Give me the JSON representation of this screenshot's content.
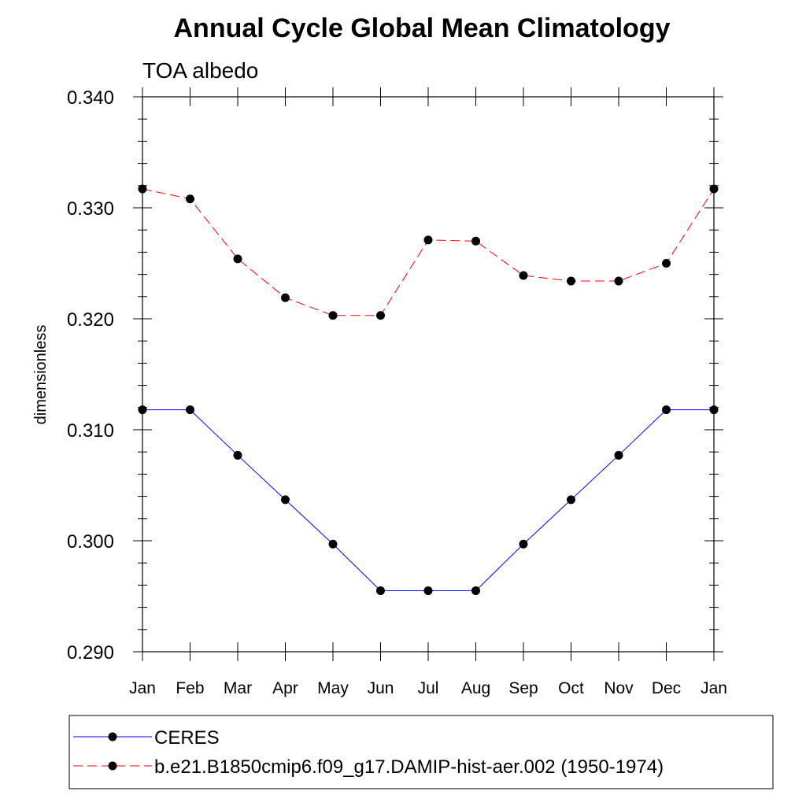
{
  "chart_data": {
    "type": "line",
    "title": "Annual Cycle Global Mean Climatology",
    "subtitle": "TOA albedo",
    "xlabel": "",
    "ylabel": "dimensionless",
    "categories": [
      "Jan",
      "Feb",
      "Mar",
      "Apr",
      "May",
      "Jun",
      "Jul",
      "Aug",
      "Sep",
      "Oct",
      "Nov",
      "Dec",
      "Jan"
    ],
    "ylim": [
      0.29,
      0.34
    ],
    "yticks": [
      "0.290",
      "0.300",
      "0.310",
      "0.320",
      "0.330",
      "0.340"
    ],
    "grid": false,
    "legend_position": "bottom",
    "series": [
      {
        "name": "CERES",
        "color": "#0000ff",
        "dash": "solid",
        "marker": "filled-circle",
        "values": [
          0.3118,
          0.3118,
          0.3077,
          0.3037,
          0.2997,
          0.2955,
          0.2955,
          0.2955,
          0.2997,
          0.3037,
          0.3077,
          0.3118,
          0.3118
        ]
      },
      {
        "name": "b.e21.B1850cmip6.f09_g17.DAMIP-hist-aer.002 (1950-1974)",
        "color": "#ff0000",
        "dash": "dashed",
        "marker": "filled-circle",
        "values": [
          0.3317,
          0.3308,
          0.3254,
          0.3219,
          0.3203,
          0.3203,
          0.3271,
          0.327,
          0.3239,
          0.3234,
          0.3234,
          0.325,
          0.3317
        ]
      }
    ]
  }
}
